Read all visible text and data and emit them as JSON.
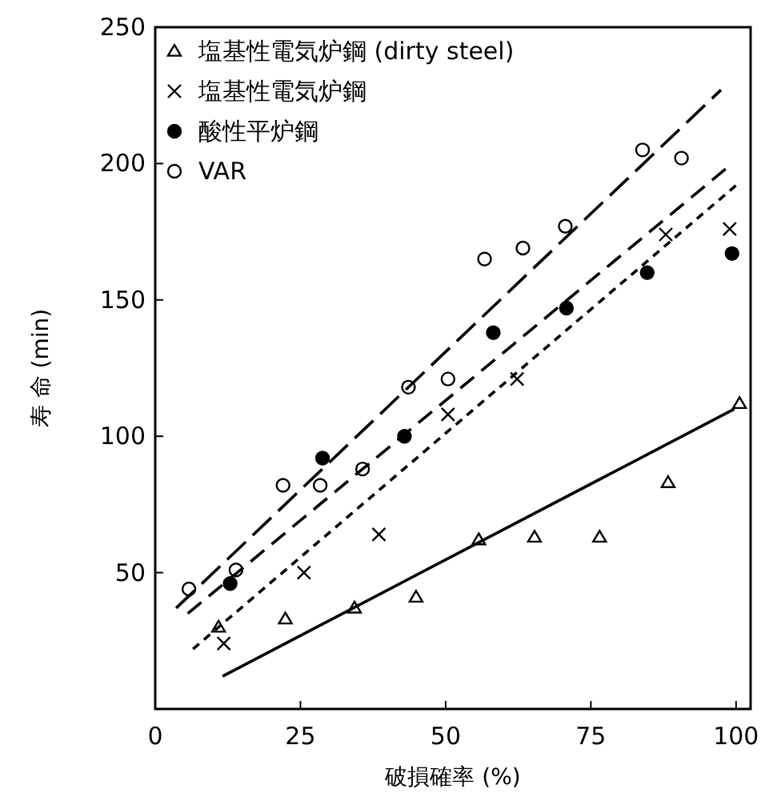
{
  "chart_data": {
    "type": "scatter",
    "xlabel": "破損確率 (%)",
    "ylabel": "寿 命 (min)",
    "xlim": [
      0,
      102.5
    ],
    "ylim": [
      0,
      250
    ],
    "xticks": [
      0,
      25,
      50,
      75,
      100
    ],
    "yticks": [
      50,
      100,
      150,
      200,
      250
    ],
    "grid": false,
    "legend": "top left",
    "series": [
      {
        "name": "塩基性電気炉鋼 (dirty steel)",
        "color": "#000000",
        "marker": "triangle",
        "x": [
          10.9,
          22.4,
          34.3,
          44.9,
          55.7,
          65.3,
          76.5,
          88.3,
          100.6
        ],
        "values": [
          30,
          33,
          37,
          41,
          62,
          63,
          63,
          83,
          112
        ]
      },
      {
        "name": "塩基性電気炉鋼",
        "color": "#000000",
        "marker": "cross",
        "x": [
          11.8,
          25.6,
          38.5,
          50.4,
          62.3,
          87.9,
          98.9
        ],
        "values": [
          24,
          50,
          64,
          108,
          121,
          174,
          176
        ]
      },
      {
        "name": "酸性平炉鋼",
        "color": "#000000",
        "marker": "circle",
        "x": [
          12.9,
          28.8,
          42.9,
          58.2,
          70.8,
          84.7,
          99.3
        ],
        "values": [
          46,
          92,
          100,
          138,
          147,
          160,
          167
        ]
      },
      {
        "name": "VAR",
        "color": "#000000",
        "marker": "circle",
        "x": [
          5.8,
          13.9,
          22.0,
          28.4,
          35.7,
          43.6,
          50.4,
          56.7,
          63.3,
          70.6,
          83.9,
          90.6
        ],
        "values": [
          44,
          51,
          82,
          82,
          88,
          118,
          121,
          165,
          169,
          177,
          205,
          202
        ]
      },
      {
        "type": "line",
        "color": "#000000",
        "line_style": "solid",
        "x": [
          11.6,
          99.7
        ],
        "values": [
          12,
          110
        ]
      },
      {
        "type": "line",
        "color": "#000000",
        "line_style": "dashed",
        "x": [
          3.6,
          97.4
        ],
        "values": [
          37,
          227
        ]
      },
      {
        "type": "line",
        "color": "#000000",
        "line_style": "dashed",
        "x": [
          5.6,
          98.2
        ],
        "values": [
          35,
          198
        ]
      },
      {
        "type": "line",
        "color": "#000000",
        "line_style": "dotted",
        "x": [
          6.5,
          100
        ],
        "values": [
          22,
          192
        ]
      }
    ]
  }
}
